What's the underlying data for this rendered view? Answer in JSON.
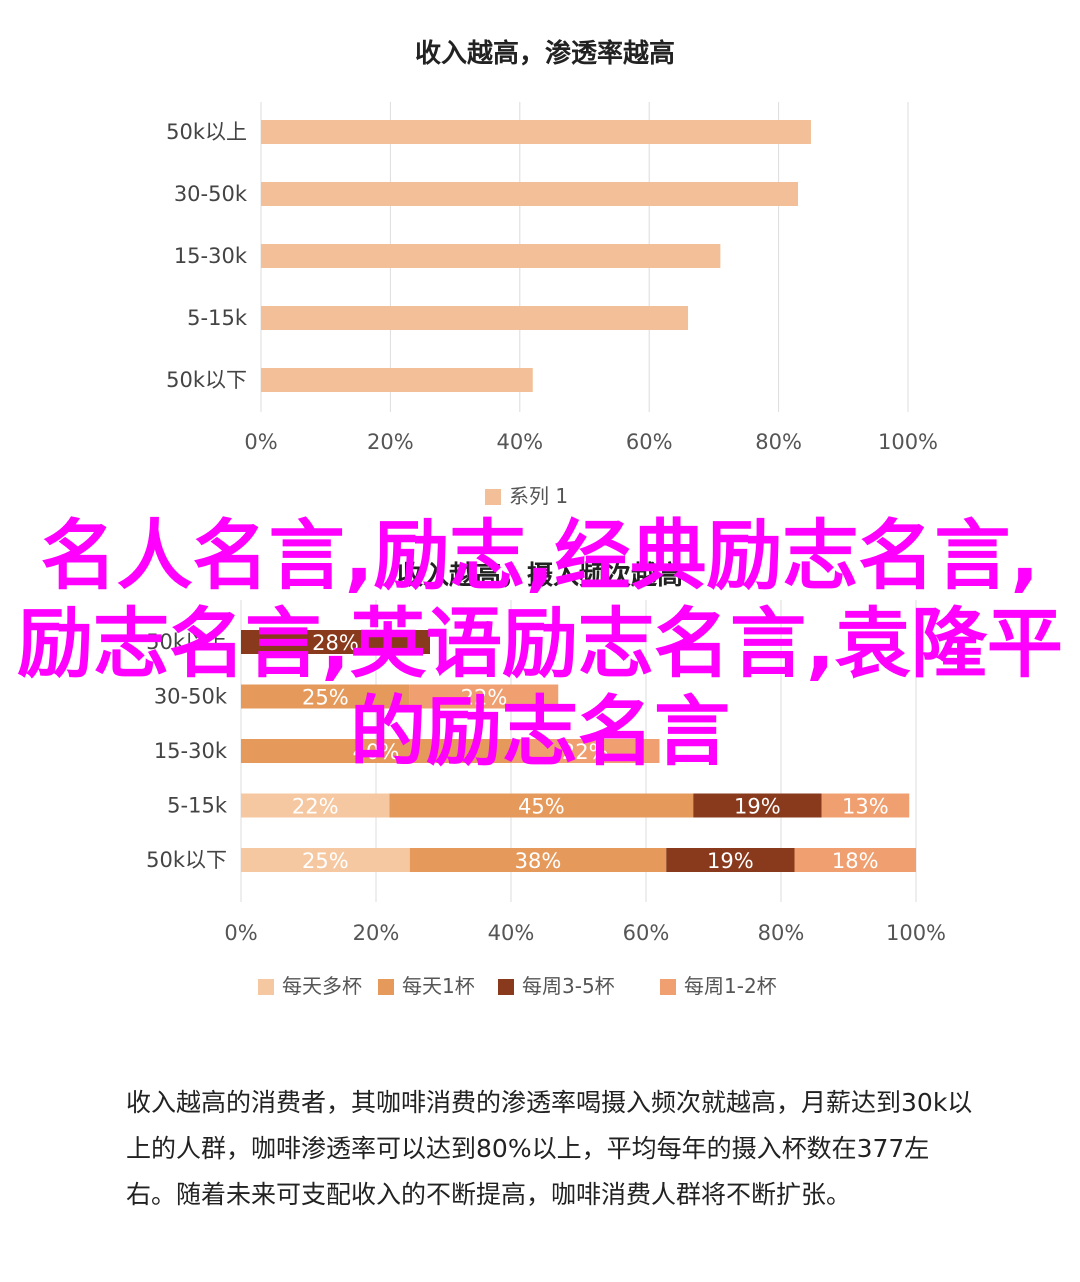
{
  "chart_data": [
    {
      "type": "bar",
      "orientation": "horizontal",
      "title": "收入越高，渗透率越高",
      "categories": [
        "50k以上",
        "30-50k",
        "15-30k",
        "5-15k",
        "50k以下"
      ],
      "series": [
        {
          "name": "系列 1",
          "values": [
            85,
            83,
            71,
            66,
            42
          ]
        }
      ],
      "xlim": [
        0,
        100
      ],
      "xticks": [
        "0%",
        "20%",
        "40%",
        "60%",
        "80%",
        "100%"
      ],
      "grid": true,
      "legend": "bottom",
      "colors": [
        "#f2bf98"
      ]
    },
    {
      "type": "bar",
      "orientation": "horizontal",
      "stacked": true,
      "title": "收入越高，摄入频次越高",
      "categories": [
        "50k以上",
        "30-50k",
        "15-30k",
        "5-15k",
        "50k以下"
      ],
      "series": [
        {
          "name": "每天多杯",
          "values": [
            null,
            null,
            null,
            22,
            25
          ]
        },
        {
          "name": "每天1杯",
          "values": [
            null,
            25,
            40,
            45,
            38
          ]
        },
        {
          "name": "每周3-5杯",
          "values": [
            28,
            null,
            null,
            19,
            19
          ]
        },
        {
          "name": "每周1-2杯",
          "values": [
            null,
            22,
            22,
            13,
            18
          ]
        }
      ],
      "xlim": [
        0,
        100
      ],
      "xticks": [
        "0%",
        "20%",
        "40%",
        "60%",
        "80%",
        "100%"
      ],
      "grid": true,
      "legend": "bottom",
      "colors": [
        "#f5c8a2",
        "#e59a5c",
        "#8a3a1c",
        "#f0a070"
      ]
    }
  ],
  "overlay_title": "名人名言,励志,经典励志名言,励志名言,英语励志名言,袁隆平的励志名言",
  "paragraph": "收入越高的消费者，其咖啡消费的渗透率喝摄入频次就越高，月薪达到30k以上的人群，咖啡渗透率可以达到80%以上，平均每年的摄入杯数在377左右。随着未来可支配收入的不断提高，咖啡消费人群将不断扩张。"
}
